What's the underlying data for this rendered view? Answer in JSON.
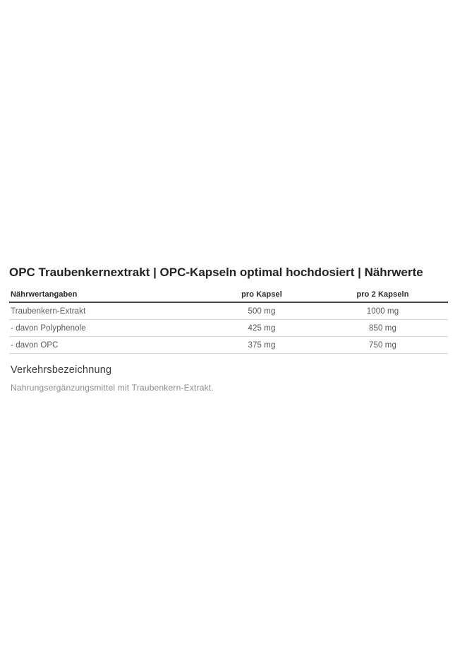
{
  "page": {
    "title": "OPC Traubenkernextrakt | OPC-Kapseln optimal hochdosiert | Nährwerte"
  },
  "nutrition_table": {
    "columns": [
      "Nährwertangaben",
      "pro Kapsel",
      "pro 2 Kapseln"
    ],
    "rows": [
      {
        "label": "Traubenkern-Extrakt",
        "per_capsule": "500 mg",
        "per_two_capsules": "1000 mg"
      },
      {
        "label": "- davon Polyphenole",
        "per_capsule": "425 mg",
        "per_two_capsules": "850 mg"
      },
      {
        "label": "- davon OPC",
        "per_capsule": "375 mg",
        "per_two_capsules": "750 mg"
      }
    ]
  },
  "description": {
    "heading": "Verkehrsbezeichnung",
    "text": "Nahrungsergänzungsmittel mit Traubenkern-Extrakt."
  },
  "colors": {
    "background": "#ffffff",
    "title_text": "#232325",
    "header_text": "#29292b",
    "row_text": "#58585b",
    "muted_text": "#8b8b8e",
    "header_border": "#454547",
    "row_border": "#d7d7d7"
  }
}
